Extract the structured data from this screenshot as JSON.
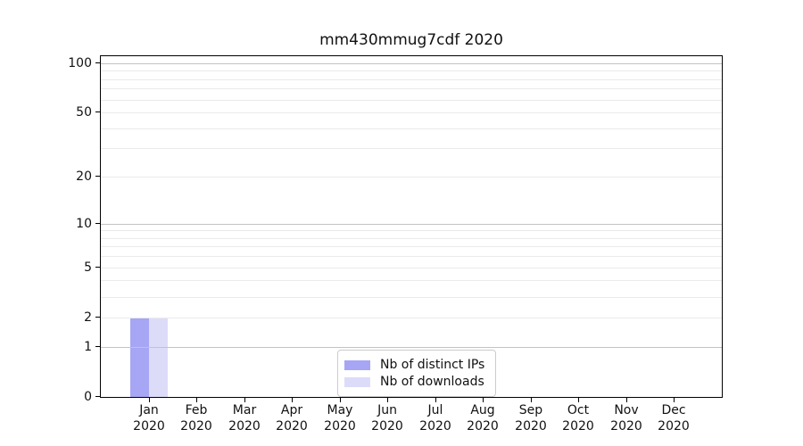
{
  "figure": {
    "background": "#ffffff"
  },
  "chart_data": {
    "type": "bar",
    "title": "mm430mmug7cdf 2020",
    "categories": [
      "Jan 2020",
      "Feb 2020",
      "Mar 2020",
      "Apr 2020",
      "May 2020",
      "Jun 2020",
      "Jul 2020",
      "Aug 2020",
      "Sep 2020",
      "Oct 2020",
      "Nov 2020",
      "Dec 2020"
    ],
    "series": [
      {
        "name": "Nb of distinct IPs",
        "color": "#a6a6f4",
        "values": [
          2,
          0,
          0,
          0,
          0,
          0,
          0,
          0,
          0,
          0,
          0,
          0
        ]
      },
      {
        "name": "Nb of downloads",
        "color": "#dcdcf9",
        "values": [
          2,
          0,
          0,
          0,
          0,
          0,
          0,
          0,
          0,
          0,
          0,
          0
        ]
      }
    ],
    "yscale": "log1p",
    "ylim": [
      0,
      110
    ],
    "yticks": [
      0,
      1,
      2,
      5,
      10,
      20,
      50,
      100
    ],
    "major_grid_values": [
      1,
      10,
      100
    ],
    "minor_grid_values": [
      2,
      3,
      4,
      5,
      6,
      7,
      8,
      9,
      20,
      30,
      40,
      50,
      60,
      70,
      80,
      90
    ],
    "grid": true,
    "legend_position": "lower center",
    "bar_width_fraction": 0.4
  },
  "colors": {
    "spine": "#000000",
    "major_grid": "#c3c3c3",
    "minor_grid": "#eaeaea",
    "legend_border": "#cccccc",
    "text": "#111111"
  }
}
